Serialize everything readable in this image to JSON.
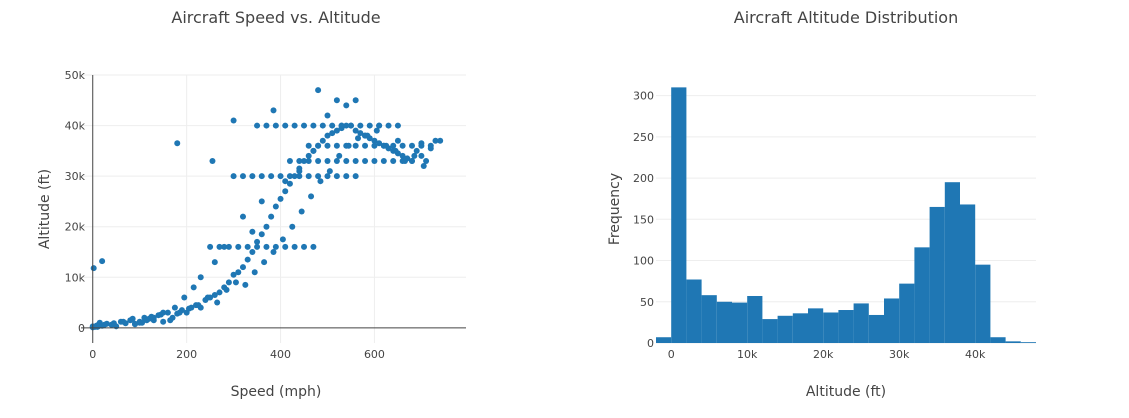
{
  "chart_data": [
    {
      "type": "scatter",
      "title": "Aircraft Speed vs. Altitude",
      "xlabel": "Speed (mph)",
      "ylabel": "Altitude (ft)",
      "xlim": [
        -25,
        795
      ],
      "ylim": [
        -3000,
        50000
      ],
      "x_ticks": [
        0,
        200,
        400,
        600
      ],
      "x_tick_labels": [
        "0",
        "200",
        "400",
        "600"
      ],
      "y_ticks": [
        0,
        10000,
        20000,
        30000,
        40000,
        50000
      ],
      "y_tick_labels": [
        "0",
        "10k",
        "20k",
        "30k",
        "40k",
        "50k"
      ],
      "grid": true,
      "color": "#1f77b4",
      "series": [
        {
          "x": [
            0,
            5,
            10,
            15,
            20,
            30,
            40,
            50,
            60,
            70,
            80,
            90,
            100,
            110,
            120,
            130,
            140,
            150,
            160,
            170,
            180,
            190,
            200,
            210,
            220,
            230,
            240,
            250,
            260,
            270,
            280,
            290,
            300,
            310,
            320,
            330,
            340,
            350,
            360,
            370,
            380,
            390,
            400,
            410,
            420,
            430,
            440,
            450,
            460,
            470,
            480,
            490,
            500,
            510,
            520,
            530,
            540,
            550,
            560,
            570,
            580,
            590,
            600,
            610,
            620,
            630,
            640,
            650,
            660,
            670,
            680,
            690,
            700,
            710,
            720,
            730,
            0,
            8,
            12,
            25,
            45,
            65,
            85,
            105,
            125,
            145,
            165,
            185,
            205,
            225,
            245,
            265,
            285,
            305,
            325,
            345,
            365,
            385,
            405,
            425,
            445,
            465,
            485,
            505,
            525,
            545,
            565,
            585,
            605,
            625,
            645,
            665,
            685,
            705,
            2,
            20,
            10,
            180,
            480,
            255,
            385,
            300,
            520,
            560,
            610,
            540,
            470,
            500,
            530,
            580,
            650,
            700,
            740,
            440,
            410,
            360,
            320,
            340,
            280,
            260,
            230,
            215,
            195,
            175,
            150,
            130,
            115,
            100,
            90,
            350,
            370,
            390,
            410,
            430,
            450,
            470,
            490,
            510,
            530,
            550,
            570,
            590,
            610,
            630,
            650,
            460,
            480,
            500,
            520,
            540,
            560,
            580,
            600,
            620,
            640,
            660,
            680,
            700,
            720,
            420,
            440,
            460,
            480,
            500,
            520,
            540,
            560,
            580,
            600,
            620,
            640,
            660,
            680,
            300,
            320,
            340,
            360,
            380,
            400,
            420,
            440,
            460,
            480,
            500,
            520,
            540,
            560,
            250,
            270,
            290,
            310,
            330,
            350,
            370,
            390,
            410,
            430,
            450,
            470
          ],
          "y": [
            300,
            200,
            500,
            1000,
            400,
            800,
            600,
            300,
            1200,
            900,
            1500,
            700,
            1000,
            2000,
            1800,
            1500,
            2500,
            1200,
            3000,
            2000,
            2800,
            3500,
            3000,
            4000,
            4500,
            4000,
            5500,
            6000,
            6500,
            7000,
            8000,
            9000,
            10500,
            11000,
            12000,
            13500,
            15000,
            17000,
            18500,
            20000,
            22000,
            24000,
            25500,
            27000,
            28500,
            30000,
            31500,
            33000,
            34000,
            35000,
            36000,
            37000,
            38000,
            38500,
            39000,
            39500,
            40000,
            40000,
            39000,
            38500,
            38000,
            37500,
            37000,
            36500,
            36000,
            35500,
            35000,
            34500,
            34000,
            33500,
            33000,
            35000,
            34000,
            33000,
            35500,
            37000,
            100,
            400,
            300,
            600,
            900,
            1200,
            1800,
            1000,
            2200,
            2600,
            1500,
            3000,
            3800,
            4500,
            6000,
            5000,
            7500,
            9000,
            8500,
            11000,
            13000,
            15000,
            17500,
            20000,
            23000,
            26000,
            29000,
            31000,
            34000,
            36000,
            37500,
            38000,
            39000,
            36000,
            35000,
            33000,
            34000,
            32000,
            11800,
            13200,
            200,
            36500,
            47000,
            33000,
            43000,
            41000,
            45000,
            45000,
            40000,
            44000,
            35000,
            42000,
            40000,
            38000,
            37000,
            36500,
            37000,
            31000,
            29000,
            25000,
            22000,
            19000,
            16000,
            13000,
            10000,
            8000,
            6000,
            4000,
            3000,
            2000,
            1500,
            1200,
            800,
            40000,
            40000,
            40000,
            40000,
            40000,
            40000,
            40000,
            40000,
            40000,
            40000,
            40000,
            40000,
            40000,
            40000,
            40000,
            40000,
            36000,
            36000,
            36000,
            36000,
            36000,
            36000,
            36000,
            36000,
            36000,
            36000,
            36000,
            36000,
            36000,
            36000,
            33000,
            33000,
            33000,
            33000,
            33000,
            33000,
            33000,
            33000,
            33000,
            33000,
            33000,
            33000,
            33000,
            33000,
            30000,
            30000,
            30000,
            30000,
            30000,
            30000,
            30000,
            30000,
            30000,
            30000,
            30000,
            30000,
            30000,
            30000,
            16000,
            16000,
            16000,
            16000,
            16000,
            16000,
            16000,
            16000,
            16000,
            16000,
            16000,
            16000
          ]
        }
      ]
    },
    {
      "type": "bar",
      "title": "Aircraft Altitude Distribution",
      "xlabel": "Altitude (ft)",
      "ylabel": "Frequency",
      "xlim": [
        -2000,
        48000
      ],
      "ylim": [
        0,
        325
      ],
      "x_ticks": [
        0,
        10000,
        20000,
        30000,
        40000
      ],
      "x_tick_labels": [
        "0",
        "10k",
        "20k",
        "30k",
        "40k"
      ],
      "y_ticks": [
        0,
        50,
        100,
        150,
        200,
        250,
        300
      ],
      "y_tick_labels": [
        "0",
        "50",
        "100",
        "150",
        "200",
        "250",
        "300"
      ],
      "grid": true,
      "color": "#1f77b4",
      "bin_start": -2000,
      "bin_width": 2000,
      "values": [
        7,
        310,
        77,
        58,
        50,
        49,
        57,
        29,
        33,
        36,
        42,
        37,
        40,
        48,
        34,
        54,
        72,
        116,
        165,
        195,
        168,
        95,
        7,
        2,
        1
      ]
    }
  ]
}
